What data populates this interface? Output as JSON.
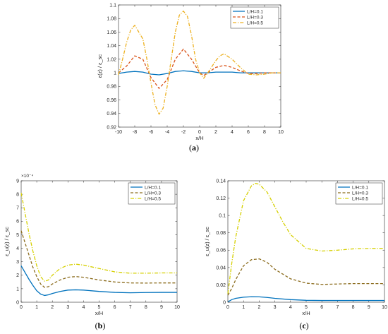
{
  "chart_data": [
    {
      "id": "a",
      "type": "line",
      "caption": "a",
      "xlabel": "x/H",
      "ylabel": "ε(z) / ε_sc",
      "xlim": [
        -10,
        10
      ],
      "ylim": [
        0.92,
        1.1
      ],
      "xticks": [
        -10,
        -8,
        -6,
        -4,
        -2,
        0,
        2,
        4,
        6,
        8,
        10
      ],
      "yticks": [
        0.92,
        0.94,
        0.96,
        0.98,
        1,
        1.02,
        1.04,
        1.06,
        1.08,
        1.1
      ],
      "ytick_labels": [
        "0.92",
        "0.94",
        "0.96",
        "0.98",
        "1",
        "1.02",
        "1.04",
        "1.06",
        "1.08",
        "1.1"
      ],
      "legend_position": "top-right",
      "series": [
        {
          "name": "L/H=0.1",
          "color": "#0072BD",
          "style": "solid",
          "x": [
            -10,
            -9,
            -8,
            -7,
            -6,
            -5,
            -4,
            -3,
            -2,
            -1,
            0,
            1,
            2,
            3,
            4,
            5,
            6,
            7,
            8,
            9,
            10
          ],
          "y": [
            0.999,
            1.001,
            1.002,
            1.001,
            0.998,
            0.997,
            0.999,
            1.002,
            1.003,
            1.002,
            1.0,
            1.0,
            1.001,
            1.001,
            1.001,
            1.0,
            1.0,
            1.0,
            1.0,
            1.0,
            1.0
          ]
        },
        {
          "name": "L/H=0.3",
          "color": "#D95319",
          "style": "dash",
          "x": [
            -10,
            -9,
            -8,
            -7,
            -6,
            -5,
            -4,
            -3,
            -2,
            -1,
            0,
            0.5,
            1,
            2,
            3,
            4,
            5,
            6,
            7,
            8,
            9,
            10
          ],
          "y": [
            1.0,
            1.01,
            1.025,
            1.02,
            0.993,
            0.977,
            0.99,
            1.02,
            1.035,
            1.02,
            1.0,
            0.996,
            1.0,
            1.008,
            1.011,
            1.008,
            1.003,
            0.999,
            0.999,
            1.0,
            1.0,
            1.0
          ]
        },
        {
          "name": "L/H=0.5",
          "color": "#EDB120",
          "style": "dashdot",
          "x": [
            -10,
            -9.5,
            -9,
            -8.5,
            -8,
            -7,
            -6.5,
            -6,
            -5.5,
            -5,
            -4.5,
            -4,
            -3,
            -2.5,
            -2,
            -1.5,
            -1,
            -0.5,
            0,
            0.5,
            1,
            2,
            2.5,
            3,
            4,
            5,
            6,
            7,
            8,
            9,
            10
          ],
          "y": [
            0.997,
            1.02,
            1.045,
            1.063,
            1.07,
            1.05,
            1.02,
            0.985,
            0.953,
            0.939,
            0.948,
            0.98,
            1.06,
            1.085,
            1.091,
            1.083,
            1.055,
            1.02,
            1.0,
            0.992,
            1.0,
            1.018,
            1.025,
            1.028,
            1.02,
            1.008,
            0.998,
            0.997,
            0.998,
            1.0,
            1.0
          ]
        }
      ]
    },
    {
      "id": "b",
      "type": "line",
      "caption": "b",
      "xlabel": "x/H",
      "ylabel": "ε_u(z) / ε_sc",
      "scale_label": "×10⁻⁴",
      "xlim": [
        0,
        10
      ],
      "ylim": [
        0,
        9
      ],
      "xticks": [
        0,
        1,
        2,
        3,
        4,
        5,
        6,
        7,
        8,
        9,
        10
      ],
      "yticks": [
        0,
        1,
        2,
        3,
        4,
        5,
        6,
        7,
        8,
        9
      ],
      "ytick_labels": [
        "0",
        "1",
        "2",
        "3",
        "4",
        "5",
        "6",
        "7",
        "8",
        "9"
      ],
      "legend_position": "top-right",
      "series": [
        {
          "name": "L/H=0.1",
          "color": "#0072BD",
          "style": "solid",
          "x": [
            0,
            0.25,
            0.5,
            0.75,
            1,
            1.25,
            1.5,
            1.75,
            2,
            2.5,
            3,
            3.5,
            4,
            5,
            6,
            7,
            8,
            9,
            10
          ],
          "y": [
            2.7,
            2.2,
            1.7,
            1.25,
            0.85,
            0.6,
            0.5,
            0.55,
            0.65,
            0.8,
            0.9,
            0.92,
            0.9,
            0.8,
            0.73,
            0.7,
            0.72,
            0.73,
            0.73
          ]
        },
        {
          "name": "L/H=0.3",
          "color": "#8C6D1F",
          "style": "dash",
          "x": [
            0,
            0.25,
            0.5,
            0.75,
            1,
            1.25,
            1.5,
            1.75,
            2,
            2.5,
            3,
            3.5,
            4,
            5,
            6,
            7,
            8,
            9,
            10
          ],
          "y": [
            5.3,
            4.4,
            3.5,
            2.6,
            1.9,
            1.35,
            1.1,
            1.15,
            1.35,
            1.65,
            1.85,
            1.9,
            1.85,
            1.65,
            1.5,
            1.43,
            1.42,
            1.43,
            1.43
          ]
        },
        {
          "name": "L/H=0.5",
          "color": "#D6D000",
          "style": "dashdot",
          "x": [
            0,
            0.25,
            0.5,
            0.75,
            1,
            1.25,
            1.5,
            1.75,
            2,
            2.5,
            3,
            3.5,
            4,
            5,
            6,
            7,
            8,
            9,
            10
          ],
          "y": [
            8.1,
            6.6,
            5.1,
            3.8,
            2.7,
            1.9,
            1.55,
            1.65,
            2.0,
            2.5,
            2.75,
            2.82,
            2.75,
            2.5,
            2.25,
            2.15,
            2.15,
            2.17,
            2.17
          ]
        }
      ]
    },
    {
      "id": "c",
      "type": "line",
      "caption": "c",
      "xlabel": "x/H",
      "ylabel": "ε_u(z) / ε_sc",
      "xlim": [
        0,
        10
      ],
      "ylim": [
        0,
        0.14
      ],
      "xticks": [
        0,
        1,
        2,
        3,
        4,
        5,
        6,
        7,
        8,
        9,
        10
      ],
      "yticks": [
        0,
        0.02,
        0.04,
        0.06,
        0.08,
        0.1,
        0.12,
        0.14
      ],
      "ytick_labels": [
        "0",
        "0.02",
        "0.04",
        "0.06",
        "0.08",
        "0.1",
        "0.12",
        "0.14"
      ],
      "legend_position": "top-right",
      "series": [
        {
          "name": "L/H=0.1",
          "color": "#0072BD",
          "style": "solid",
          "x": [
            0,
            0.25,
            0.5,
            1,
            1.5,
            2,
            2.5,
            3,
            4,
            5,
            6,
            7,
            8,
            9,
            10
          ],
          "y": [
            0.0005,
            0.003,
            0.0045,
            0.0058,
            0.0063,
            0.0062,
            0.0055,
            0.0045,
            0.003,
            0.0022,
            0.002,
            0.002,
            0.002,
            0.002,
            0.002
          ]
        },
        {
          "name": "L/H=0.3",
          "color": "#8C6D1F",
          "style": "dash",
          "x": [
            0,
            0.25,
            0.5,
            1,
            1.5,
            2,
            2.5,
            3,
            4,
            5,
            6,
            7,
            8,
            9,
            10
          ],
          "y": [
            0.008,
            0.016,
            0.026,
            0.042,
            0.049,
            0.05,
            0.046,
            0.038,
            0.027,
            0.022,
            0.0205,
            0.021,
            0.0215,
            0.0215,
            0.0215
          ]
        },
        {
          "name": "L/H=0.5",
          "color": "#D6D000",
          "style": "dashdot",
          "x": [
            0,
            0.25,
            0.5,
            1,
            1.5,
            1.75,
            2,
            2.5,
            3,
            3.5,
            4,
            5,
            6,
            7,
            8,
            9,
            10
          ],
          "y": [
            0.01,
            0.045,
            0.075,
            0.117,
            0.134,
            0.137,
            0.136,
            0.127,
            0.11,
            0.093,
            0.078,
            0.062,
            0.059,
            0.06,
            0.0615,
            0.062,
            0.062
          ]
        }
      ]
    }
  ]
}
